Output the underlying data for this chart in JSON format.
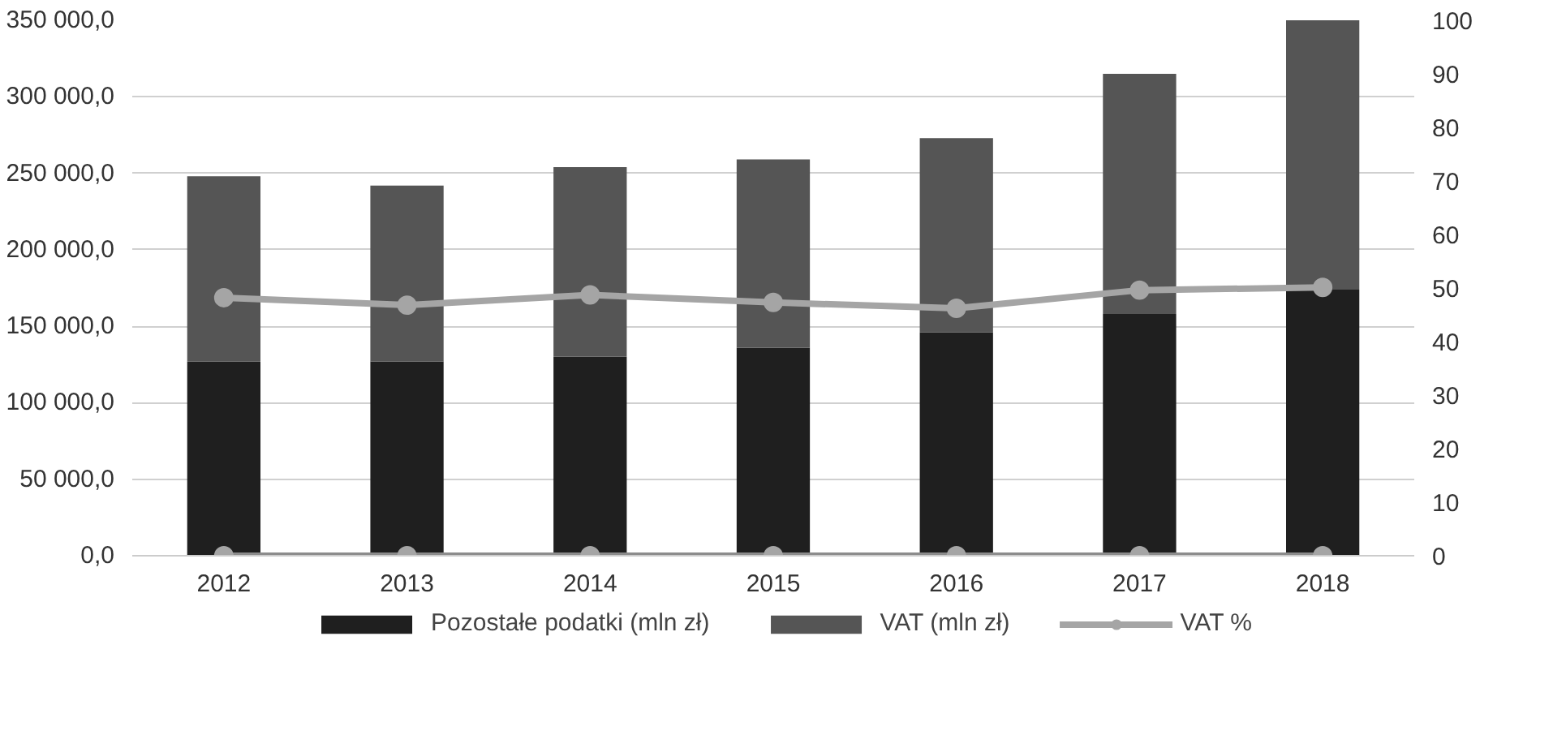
{
  "chart_data": {
    "type": "bar",
    "stacked": true,
    "categories": [
      "2012",
      "2013",
      "2014",
      "2015",
      "2016",
      "2017",
      "2018"
    ],
    "series": [
      {
        "name": "Pozostałe podatki (mln zł)",
        "color": "#1f1f1f",
        "values": [
          127000,
          127000,
          130000,
          136000,
          146000,
          158000,
          174000
        ]
      },
      {
        "name": "VAT (mln zł)",
        "color": "#555555",
        "values": [
          121000,
          115000,
          124000,
          123000,
          127000,
          157000,
          176000
        ]
      },
      {
        "name": "VAT %",
        "type": "line",
        "axis": "y2",
        "color": "#a5a5a5",
        "values": [
          48.2,
          46.8,
          48.7,
          47.3,
          46.2,
          49.6,
          50.1
        ]
      },
      {
        "type": "line",
        "axis": "y2",
        "color": "#8c8c8c",
        "values": [
          0,
          0,
          0,
          0,
          0,
          0,
          0
        ]
      }
    ],
    "ylim": [
      0,
      350000
    ],
    "yticks": [
      {
        "value": 0,
        "label": "0,0"
      },
      {
        "value": 50000,
        "label": "50 000,0"
      },
      {
        "value": 100000,
        "label": "100 000,0"
      },
      {
        "value": 150000,
        "label": "150 000,0"
      },
      {
        "value": 200000,
        "label": "200 000,0"
      },
      {
        "value": 250000,
        "label": "250 000,0"
      },
      {
        "value": 300000,
        "label": "300 000,0"
      },
      {
        "value": 350000,
        "label": "350 000,0"
      }
    ],
    "y2lim": [
      0,
      100
    ],
    "y2ticks": [
      0,
      10,
      20,
      30,
      40,
      50,
      60,
      70,
      80,
      90,
      100
    ],
    "grid": "y",
    "legend": "bottom",
    "marker": "circle",
    "line_style": "solid"
  }
}
